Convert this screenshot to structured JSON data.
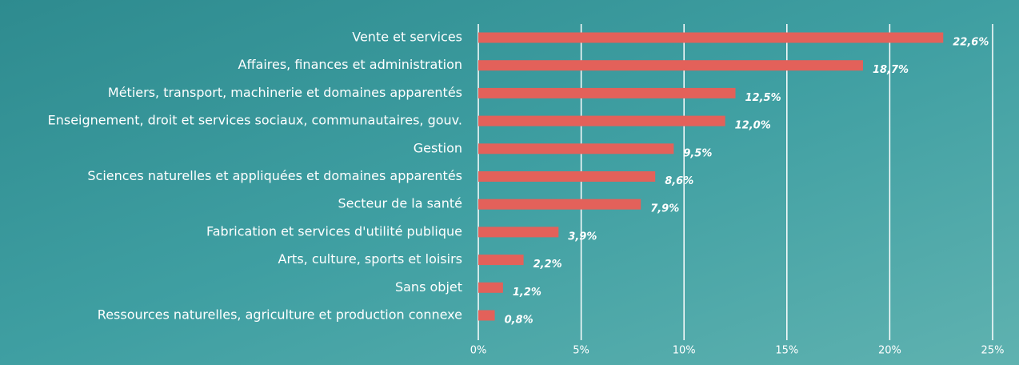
{
  "chart_data": {
    "type": "bar",
    "orientation": "horizontal",
    "categories": [
      "Vente et services",
      "Affaires, finances et administration",
      "Métiers, transport, machinerie et domaines apparentés",
      "Enseignement, droit et services sociaux, communautaires, gouv.",
      "Gestion",
      "Sciences naturelles et appliquées et domaines apparentés",
      "Secteur de la santé",
      "Fabrication et services d'utilité publique",
      "Arts, culture, sports et loisirs",
      "Sans objet",
      "Ressources naturelles, agriculture et production connexe"
    ],
    "values": [
      22.6,
      18.7,
      12.5,
      12.0,
      9.5,
      8.6,
      7.9,
      3.9,
      2.2,
      1.2,
      0.8
    ],
    "value_labels": [
      "22,6%",
      "18,7%",
      "12,5%",
      "12,0%",
      "9,5%",
      "8,6%",
      "7,9%",
      "3,9%",
      "2,2%",
      "1,2%",
      "0,8%"
    ],
    "color": "#e3615a",
    "xlim": [
      0,
      25
    ],
    "xticks": [
      {
        "value": 0,
        "label": "0%"
      },
      {
        "value": 5,
        "label": "5%"
      },
      {
        "value": 10,
        "label": "10%"
      },
      {
        "value": 15,
        "label": "15%"
      },
      {
        "value": 20,
        "label": "20%"
      },
      {
        "value": 25,
        "label": "25%"
      }
    ],
    "grid": true
  }
}
